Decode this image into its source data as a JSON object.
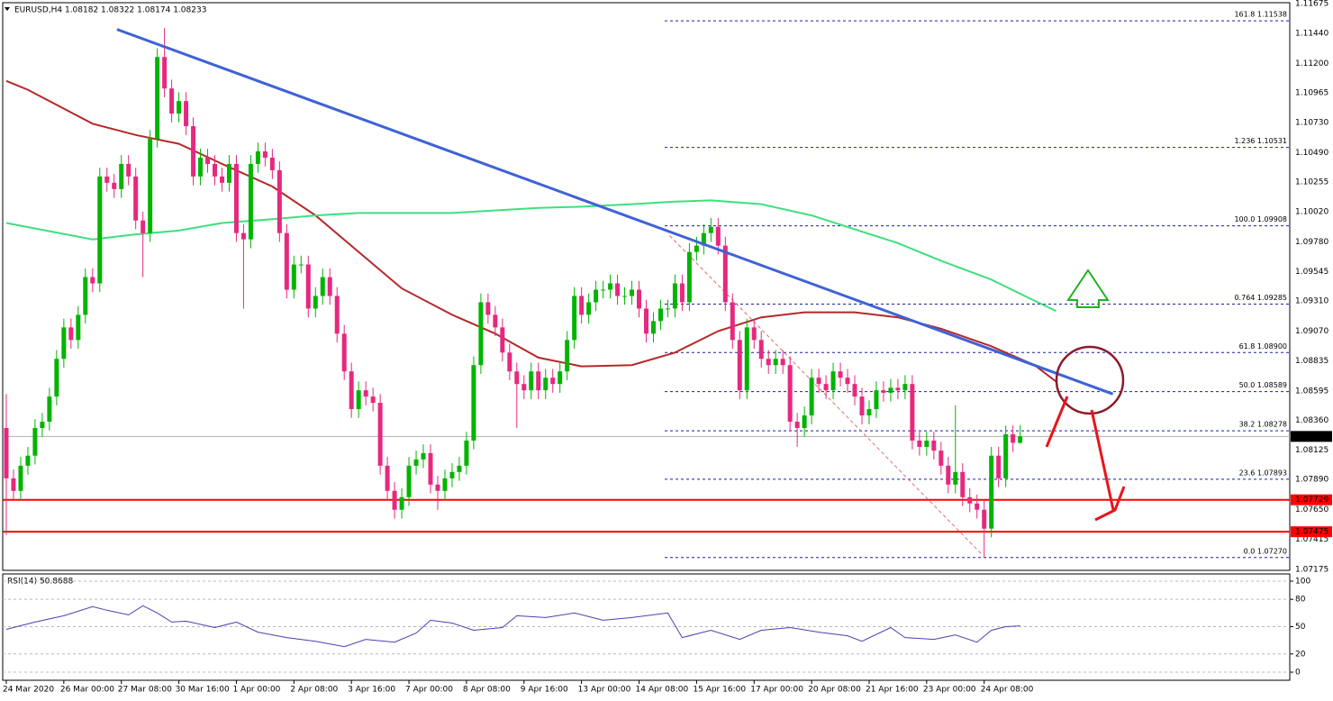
{
  "chart_data": [
    {
      "type": "candlestick",
      "title": "EURUSD,H4  1.08182 1.08322 1.08174 1.08233",
      "categories": [
        "24 Mar 2020",
        null,
        null,
        null,
        null,
        null,
        null,
        null,
        "26 Mar 00:00",
        null,
        null,
        null,
        null,
        null,
        null,
        null,
        "27 Mar 08:00",
        null,
        null,
        null,
        null,
        null,
        null,
        null,
        "30 Mar 16:00",
        null,
        null,
        null,
        null,
        null,
        null,
        null,
        "1 Apr 00:00",
        null,
        null,
        null,
        null,
        null,
        null,
        null,
        "2 Apr 08:00",
        null,
        null,
        null,
        null,
        null,
        null,
        null,
        "3 Apr 16:00",
        null,
        null,
        null,
        null,
        null,
        null,
        null,
        "7 Apr 00:00",
        null,
        null,
        null,
        null,
        null,
        null,
        null,
        "8 Apr 08:00",
        null,
        null,
        null,
        null,
        null,
        null,
        null,
        "9 Apr 16:00",
        null,
        null,
        null,
        null,
        null,
        null,
        null,
        "13 Apr 00:00",
        null,
        null,
        null,
        null,
        null,
        null,
        null,
        "14 Apr 08:00",
        null,
        null,
        null,
        null,
        null,
        null,
        null,
        "15 Apr 16:00",
        null,
        null,
        null,
        null,
        null,
        null,
        null,
        "17 Apr 00:00",
        null,
        null,
        null,
        null,
        null,
        null,
        null,
        "20 Apr 08:00",
        null,
        null,
        null,
        null,
        null,
        null,
        null,
        "21 Apr 16:00",
        null,
        null,
        null,
        null,
        null,
        null,
        null,
        "23 Apr 00:00",
        null,
        null,
        null,
        null,
        null,
        null,
        null,
        "24 Apr 08:00",
        null,
        null,
        null,
        null,
        null
      ],
      "open": [
        1.083,
        1.079,
        1.078,
        1.08,
        1.0808,
        1.083,
        1.0835,
        1.0855,
        1.0885,
        1.091,
        1.09,
        1.092,
        1.095,
        1.0945,
        1.103,
        1.1025,
        1.102,
        1.104,
        1.103,
        1.0995,
        1.0985,
        1.106,
        1.1125,
        1.11,
        1.108,
        1.109,
        1.107,
        1.103,
        1.1045,
        1.104,
        1.103,
        1.1025,
        1.104,
        1.0985,
        1.098,
        1.104,
        1.105,
        1.1045,
        1.1035,
        1.0985,
        1.094,
        1.096,
        1.096,
        1.0925,
        1.0935,
        1.095,
        1.0935,
        1.0905,
        1.0875,
        1.0845,
        1.086,
        1.0855,
        1.085,
        1.08,
        1.078,
        1.0765,
        1.0775,
        1.08,
        1.0805,
        1.081,
        1.0785,
        1.078,
        1.079,
        1.0795,
        1.08,
        1.082,
        1.088,
        1.093,
        1.092,
        1.091,
        1.089,
        1.0875,
        1.0865,
        1.086,
        1.0875,
        1.086,
        1.087,
        1.0865,
        1.0875,
        1.09,
        1.0935,
        1.092,
        1.093,
        1.094,
        1.094,
        1.0945,
        1.0935,
        1.0935,
        1.094,
        1.0925,
        1.0905,
        1.0915,
        1.0925,
        1.0925,
        1.0945,
        1.093,
        1.097,
        1.0975,
        1.0985,
        1.099,
        1.0975,
        1.093,
        1.09,
        1.086,
        1.091,
        1.09,
        1.0885,
        1.088,
        1.0885,
        1.088,
        1.0835,
        1.083,
        1.084,
        1.087,
        1.0865,
        1.086,
        1.0875,
        1.087,
        1.0865,
        1.0855,
        1.084,
        1.0845,
        1.086,
        1.0858,
        1.0862,
        1.086,
        1.0865,
        1.082,
        1.0815,
        1.082,
        1.0812,
        1.08,
        1.0785,
        1.0795,
        1.0775,
        1.077,
        1.0765,
        1.075,
        1.0808,
        1.079,
        1.0825,
        1.08182
      ],
      "high": [
        1.0857,
        1.0797,
        1.0807,
        1.0815,
        1.0837,
        1.0842,
        1.0862,
        1.0892,
        1.0917,
        1.0917,
        1.0927,
        1.0957,
        1.0957,
        1.1037,
        1.1037,
        1.1032,
        1.1047,
        1.1047,
        1.1037,
        1.1002,
        1.1067,
        1.1132,
        1.1148,
        1.1107,
        1.1097,
        1.1097,
        1.1077,
        1.1052,
        1.1052,
        1.1047,
        1.1037,
        1.1047,
        1.1047,
        1.0992,
        1.1047,
        1.1057,
        1.1057,
        1.1052,
        1.1042,
        1.0992,
        1.0967,
        1.0967,
        1.0967,
        1.0942,
        1.0957,
        1.0957,
        1.0942,
        1.0912,
        1.0882,
        1.0867,
        1.0867,
        1.0862,
        1.0857,
        1.0807,
        1.0787,
        1.0782,
        1.0807,
        1.0812,
        1.0817,
        1.0817,
        1.0792,
        1.0797,
        1.0802,
        1.0807,
        1.0827,
        1.0887,
        1.0937,
        1.0937,
        1.0927,
        1.0917,
        1.0897,
        1.0882,
        1.0872,
        1.0882,
        1.0882,
        1.0877,
        1.0877,
        1.0882,
        1.0907,
        1.0942,
        1.0942,
        1.0937,
        1.0947,
        1.0947,
        1.0952,
        1.0952,
        1.0942,
        1.0947,
        1.0947,
        1.0932,
        1.0922,
        1.0932,
        1.0932,
        1.0952,
        1.0952,
        1.0977,
        1.0982,
        1.0992,
        1.0997,
        1.0997,
        1.0982,
        1.0937,
        1.0907,
        1.0917,
        1.0917,
        1.0907,
        1.0892,
        1.0892,
        1.0892,
        1.0887,
        1.0842,
        1.0847,
        1.0877,
        1.0877,
        1.0872,
        1.0882,
        1.0882,
        1.0877,
        1.0872,
        1.0862,
        1.0852,
        1.0867,
        1.0867,
        1.0869,
        1.0869,
        1.0872,
        1.0872,
        1.0827,
        1.0827,
        1.0827,
        1.0819,
        1.0807,
        1.0848,
        1.0802,
        1.0782,
        1.0777,
        1.0772,
        1.0815,
        1.0815,
        1.0832,
        1.0832,
        1.08322
      ],
      "low": [
        1.0745,
        1.0773,
        1.0773,
        1.0793,
        1.0801,
        1.0823,
        1.0828,
        1.0848,
        1.0878,
        1.0893,
        1.0893,
        1.0913,
        1.0938,
        1.0938,
        1.1018,
        1.1013,
        1.1013,
        1.1023,
        1.0988,
        1.095,
        1.0978,
        1.1053,
        1.1093,
        1.1073,
        1.1073,
        1.1063,
        1.1023,
        1.1023,
        1.1033,
        1.1023,
        1.1018,
        1.1018,
        1.0978,
        1.0925,
        1.0973,
        1.1033,
        1.1038,
        1.1028,
        1.0978,
        1.0933,
        1.0933,
        1.0953,
        1.0918,
        1.0918,
        1.0928,
        1.0928,
        1.0898,
        1.0868,
        1.0838,
        1.0838,
        1.0848,
        1.0843,
        1.0793,
        1.0773,
        1.0758,
        1.0758,
        1.0768,
        1.0793,
        1.0798,
        1.0778,
        1.0765,
        1.0773,
        1.0783,
        1.0788,
        1.0793,
        1.0813,
        1.0873,
        1.0913,
        1.0903,
        1.0883,
        1.0868,
        1.083,
        1.0853,
        1.0853,
        1.0853,
        1.0853,
        1.0858,
        1.0858,
        1.0868,
        1.0893,
        1.0913,
        1.0913,
        1.0923,
        1.0933,
        1.0933,
        1.0928,
        1.0928,
        1.0928,
        1.0918,
        1.0898,
        1.0898,
        1.0908,
        1.0918,
        1.0918,
        1.0923,
        1.0923,
        1.0963,
        1.0968,
        1.0978,
        1.0968,
        1.0923,
        1.0893,
        1.0853,
        1.0853,
        1.0893,
        1.0878,
        1.0873,
        1.0873,
        1.0873,
        1.0828,
        1.0815,
        1.0823,
        1.0833,
        1.0858,
        1.0853,
        1.0853,
        1.0863,
        1.0858,
        1.0848,
        1.0833,
        1.0833,
        1.0838,
        1.0851,
        1.0851,
        1.0853,
        1.0853,
        1.0813,
        1.0808,
        1.0808,
        1.0805,
        1.0793,
        1.0778,
        1.0778,
        1.0768,
        1.0763,
        1.0758,
        1.0727,
        1.0743,
        1.0783,
        1.0783,
        1.0811,
        1.08174
      ],
      "close": [
        1.079,
        1.078,
        1.08,
        1.0808,
        1.083,
        1.0835,
        1.0855,
        1.0885,
        1.091,
        1.09,
        1.092,
        1.095,
        1.0945,
        1.103,
        1.1025,
        1.102,
        1.104,
        1.103,
        1.0995,
        1.0985,
        1.106,
        1.1125,
        1.11,
        1.108,
        1.109,
        1.107,
        1.103,
        1.1045,
        1.104,
        1.103,
        1.1025,
        1.104,
        1.0985,
        1.098,
        1.104,
        1.105,
        1.1045,
        1.1035,
        1.0985,
        1.094,
        1.096,
        1.096,
        1.0925,
        1.0935,
        1.095,
        1.0935,
        1.0905,
        1.0875,
        1.0845,
        1.086,
        1.0855,
        1.085,
        1.08,
        1.078,
        1.0765,
        1.0775,
        1.08,
        1.0805,
        1.081,
        1.0785,
        1.078,
        1.079,
        1.0795,
        1.08,
        1.082,
        1.088,
        1.093,
        1.092,
        1.091,
        1.089,
        1.0875,
        1.0865,
        1.086,
        1.0875,
        1.086,
        1.087,
        1.0865,
        1.0875,
        1.09,
        1.0935,
        1.092,
        1.093,
        1.094,
        1.094,
        1.0945,
        1.0935,
        1.0935,
        1.094,
        1.0925,
        1.0905,
        1.0915,
        1.0925,
        1.0925,
        1.0945,
        1.093,
        1.097,
        1.0975,
        1.0985,
        1.099,
        1.0975,
        1.093,
        1.09,
        1.086,
        1.091,
        1.09,
        1.0885,
        1.088,
        1.0885,
        1.088,
        1.0835,
        1.083,
        1.084,
        1.087,
        1.0865,
        1.086,
        1.0875,
        1.087,
        1.0865,
        1.0855,
        1.084,
        1.0845,
        1.086,
        1.0858,
        1.0862,
        1.086,
        1.0865,
        1.082,
        1.0815,
        1.082,
        1.0812,
        1.08,
        1.0785,
        1.0795,
        1.0775,
        1.077,
        1.0765,
        1.075,
        1.0808,
        1.079,
        1.0825,
        1.08182,
        1.08233
      ],
      "up_color": "#00b400",
      "down_color": "#e6287f",
      "xlim": [
        -0.5,
        178.5
      ],
      "ylim": [
        1.07168,
        1.11682
      ],
      "yticks": [
        1.11675,
        {
          "value": 1.1144,
          "label": "1.11440"
        },
        {
          "value": 1.112,
          "label": "1.11200"
        },
        1.10965,
        {
          "value": 1.1073,
          "label": "1.10730"
        },
        {
          "value": 1.1049,
          "label": "1.10490"
        },
        1.10255,
        {
          "value": 1.1002,
          "label": "1.10020"
        },
        {
          "value": 1.0978,
          "label": "1.09780"
        },
        1.09545,
        {
          "value": 1.0931,
          "label": "1.09310"
        },
        {
          "value": 1.0907,
          "label": "1.09070"
        },
        1.08835,
        1.08595,
        {
          "value": 1.0836,
          "label": "1.08360"
        },
        1.08125,
        {
          "value": 1.0789,
          "label": "1.07890"
        },
        {
          "value": 1.0765,
          "label": "1.07650"
        },
        1.07415,
        1.07175
      ],
      "overlays": [
        {
          "color": "#b52828",
          "x": [
            0,
            3,
            12,
            18,
            24,
            30,
            37,
            43,
            49,
            55,
            62,
            68,
            74,
            80,
            87,
            93,
            99,
            105,
            111,
            118,
            124,
            130,
            137,
            143,
            146
          ],
          "values": [
            1.1106,
            1.1099,
            1.1072,
            1.1063,
            1.1056,
            1.104,
            1.1022,
            1.0999,
            1.097,
            1.0941,
            1.092,
            1.0905,
            1.0886,
            1.0879,
            1.088,
            1.089,
            1.0907,
            1.0918,
            1.0922,
            1.0922,
            1.0918,
            1.0909,
            1.0895,
            1.088,
            1.0867
          ]
        },
        {
          "color": "#3ee07c",
          "x": [
            0,
            12,
            18,
            24,
            30,
            37,
            43,
            49,
            62,
            74,
            80,
            87,
            93,
            98,
            105,
            112,
            118,
            124,
            130,
            137,
            142,
            146
          ],
          "values": [
            1.0993,
            1.098,
            1.0984,
            1.0987,
            1.0993,
            1.0996,
            1.0999,
            1.1001,
            1.1001,
            1.1005,
            1.1006,
            1.1008,
            1.101,
            1.1011,
            1.1008,
            1.0999,
            1.0988,
            1.0977,
            1.0963,
            1.0948,
            1.0934,
            1.0923
          ]
        }
      ],
      "trendline": {
        "color": "#3f62d6",
        "x": [
          15.4,
          153.9
        ],
        "values": [
          1.1147,
          1.0857
        ]
      },
      "projection": {
        "color": "#e06a6a",
        "x": [
          92.25,
          135.6
        ],
        "values": [
          1.0983,
          1.073
        ]
      },
      "levels": [
        {
          "value": 1.07729,
          "color": "#ff0000"
        },
        {
          "value": 1.07475,
          "color": "#ff0000"
        }
      ],
      "price": 1.08233,
      "fibo_color": "#1c1ca8",
      "fibo": [
        {
          "value": 1.11538,
          "label": "161.8 1.11538"
        },
        {
          "value": 1.10531,
          "label": "1.236 1.10531"
        },
        {
          "value": 1.09908,
          "label": "100.0 1.09908"
        },
        {
          "value": 1.09285,
          "label": "0.764 1.09285"
        },
        {
          "value": 1.089,
          "label": "61.8 1.08900"
        },
        {
          "value": 1.08589,
          "label": "50.0 1.08589"
        },
        {
          "value": 1.08278,
          "label": "38.2 1.08278"
        },
        {
          "value": 1.07893,
          "label": "23.6 1.07893"
        },
        {
          "value": 1.0727,
          "label": "0.0 1.07270"
        }
      ]
    },
    {
      "type": "line",
      "title": "RSI(14) 50.8688",
      "color": "#4b3fb0",
      "x": [
        0,
        4,
        8,
        12,
        14,
        17,
        19,
        21,
        23,
        25,
        29,
        32,
        35,
        39,
        43,
        47,
        50,
        54,
        57,
        59,
        62,
        65,
        69,
        71,
        75,
        79,
        83,
        87,
        92,
        94,
        98,
        102,
        105,
        109,
        113,
        117,
        119,
        123,
        125,
        129,
        132,
        135,
        137,
        139,
        141
      ],
      "values": [
        47,
        55,
        62,
        72,
        68,
        63,
        73,
        65,
        55,
        56,
        49,
        55,
        44,
        38,
        34,
        28,
        36,
        33,
        43,
        57,
        54,
        46,
        49,
        62,
        60,
        65,
        57,
        60,
        65,
        38,
        46,
        36,
        46,
        49,
        44,
        40,
        34,
        49,
        38,
        36,
        41,
        33,
        46,
        50,
        50.8688
      ],
      "xlim": [
        -0.5,
        178.5
      ],
      "ylim": [
        -8.9,
        107.9
      ],
      "yticks": [
        0,
        20,
        50,
        80,
        100
      ],
      "grid": true
    }
  ]
}
